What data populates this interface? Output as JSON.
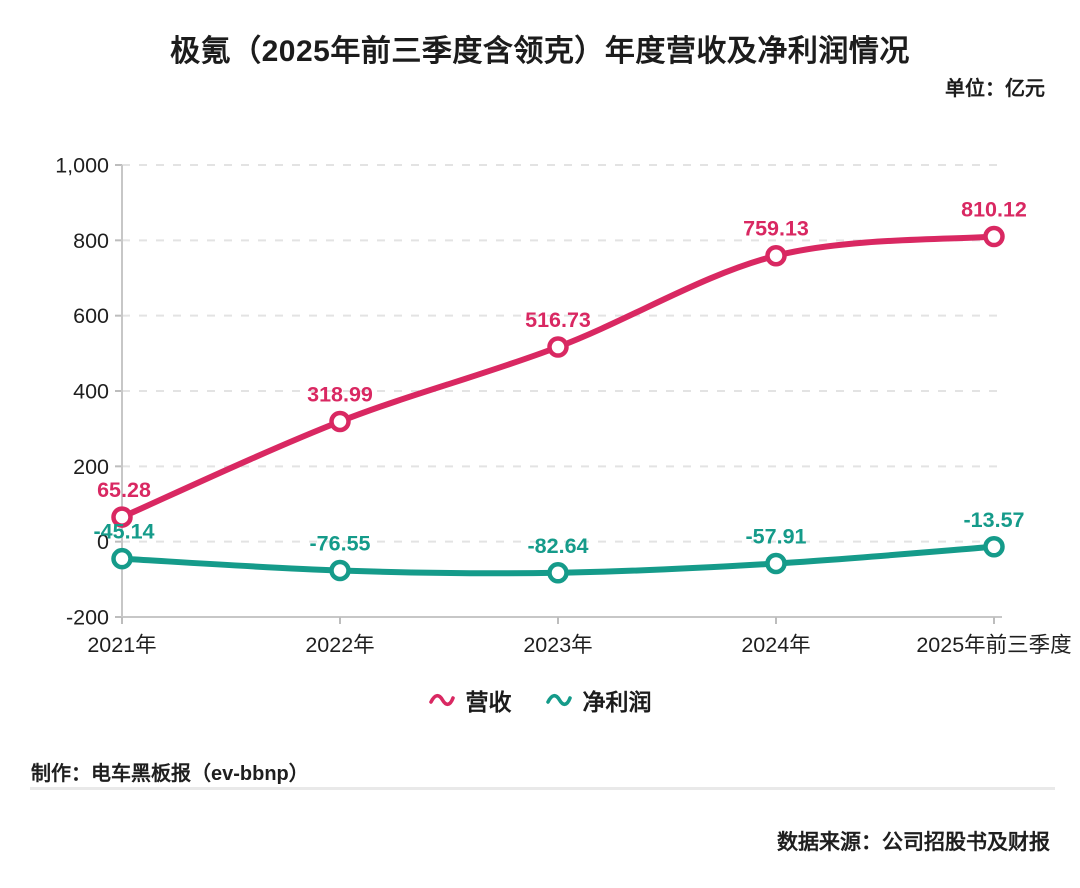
{
  "title": "极氪（2025年前三季度含领克）年度营收及净利润情况",
  "unit_label": "单位：亿元",
  "colors": {
    "revenue": "#d92862",
    "net_profit": "#159b8a",
    "grid": "#e3e3e3",
    "axis": "#c7c7c7",
    "tick": "#bdbdbd",
    "text": "#1f1f1f"
  },
  "chart_data": {
    "type": "line",
    "categories": [
      "2021年",
      "2022年",
      "2023年",
      "2024年",
      "2025年前三季度"
    ],
    "series": [
      {
        "name": "营收",
        "color_key": "revenue",
        "values": [
          65.28,
          318.99,
          516.73,
          759.13,
          810.12
        ],
        "labels": [
          "65.28",
          "318.99",
          "516.73",
          "759.13",
          "810.12"
        ]
      },
      {
        "name": "净利润",
        "color_key": "net_profit",
        "values": [
          -45.14,
          -76.55,
          -82.64,
          -57.91,
          -13.57
        ],
        "labels": [
          "-45.14",
          "-76.55",
          "-82.64",
          "-57.91",
          "-13.57"
        ]
      }
    ],
    "ylim": [
      -200,
      1000
    ],
    "ytick_step": 200,
    "ytick_labels": [
      "-200",
      "0",
      "200",
      "400",
      "600",
      "800",
      "1,000"
    ],
    "grid": true,
    "legend_position": "bottom"
  },
  "footer": {
    "credit": "制作：电车黑板报（ev-bbnp）",
    "source": "数据来源：公司招股书及财报"
  }
}
